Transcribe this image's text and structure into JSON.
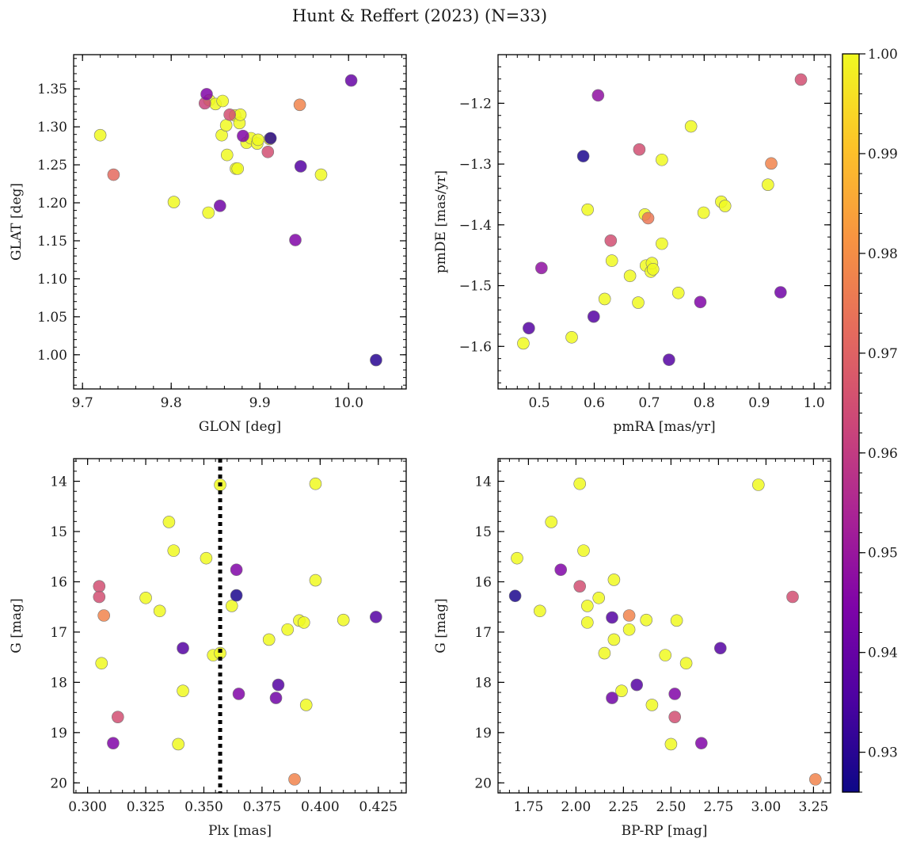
{
  "figure": {
    "title": "Hunt & Reffert (2023) (N=33)",
    "colorbar": {
      "vmin": 0.926,
      "vmax": 1.0,
      "ticks": [
        0.93,
        0.94,
        0.95,
        0.96,
        0.97,
        0.98,
        0.99,
        1.0
      ],
      "tick_labels": [
        "0.93",
        "0.94",
        "0.95",
        "0.96",
        "0.97",
        "0.98",
        "0.99",
        "1.00"
      ],
      "colormap": "plasma"
    }
  },
  "chart_data": [
    {
      "type": "scatter",
      "id": "glon-glat",
      "xlabel": "GLON [deg]",
      "ylabel": "GLAT [deg]",
      "xlim": [
        9.69,
        10.065
      ],
      "ylim": [
        0.955,
        1.395
      ],
      "invert_y": false,
      "xticks": [
        9.7,
        9.8,
        9.9,
        10.0
      ],
      "xtick_labels": [
        "9.7",
        "9.8",
        "9.9",
        "10.0"
      ],
      "yticks": [
        1.0,
        1.05,
        1.1,
        1.15,
        1.2,
        1.25,
        1.3,
        1.35
      ],
      "ytick_labels": [
        "1.00",
        "1.05",
        "1.10",
        "1.15",
        "1.20",
        "1.25",
        "1.30",
        "1.35"
      ],
      "points": [
        {
          "x": 9.72,
          "y": 1.289,
          "c": 1.0
        },
        {
          "x": 9.735,
          "y": 1.237,
          "c": 0.972
        },
        {
          "x": 9.803,
          "y": 1.201,
          "c": 1.0
        },
        {
          "x": 9.838,
          "y": 1.331,
          "c": 0.962
        },
        {
          "x": 9.84,
          "y": 1.343,
          "c": 0.945
        },
        {
          "x": 9.843,
          "y": 1.335,
          "c": 1.0
        },
        {
          "x": 9.842,
          "y": 1.187,
          "c": 1.0
        },
        {
          "x": 9.85,
          "y": 1.33,
          "c": 1.0
        },
        {
          "x": 9.855,
          "y": 1.196,
          "c": 0.942
        },
        {
          "x": 9.857,
          "y": 1.289,
          "c": 1.0
        },
        {
          "x": 9.858,
          "y": 1.334,
          "c": 1.0
        },
        {
          "x": 9.862,
          "y": 1.302,
          "c": 1.0
        },
        {
          "x": 9.863,
          "y": 1.263,
          "c": 1.0
        },
        {
          "x": 9.866,
          "y": 1.316,
          "c": 0.965
        },
        {
          "x": 9.872,
          "y": 1.315,
          "c": 1.0
        },
        {
          "x": 9.873,
          "y": 1.245,
          "c": 1.0
        },
        {
          "x": 9.875,
          "y": 1.245,
          "c": 1.0
        },
        {
          "x": 9.877,
          "y": 1.305,
          "c": 1.0
        },
        {
          "x": 9.878,
          "y": 1.316,
          "c": 1.0
        },
        {
          "x": 9.881,
          "y": 1.288,
          "c": 0.945
        },
        {
          "x": 9.885,
          "y": 1.279,
          "c": 1.0
        },
        {
          "x": 9.89,
          "y": 1.285,
          "c": 1.0
        },
        {
          "x": 9.897,
          "y": 1.278,
          "c": 1.0
        },
        {
          "x": 9.898,
          "y": 1.283,
          "c": 1.0
        },
        {
          "x": 9.909,
          "y": 1.267,
          "c": 0.965
        },
        {
          "x": 9.912,
          "y": 1.285,
          "c": 0.93
        },
        {
          "x": 9.911,
          "y": 1.284,
          "c": 1.0
        },
        {
          "x": 9.94,
          "y": 1.151,
          "c": 0.945
        },
        {
          "x": 9.945,
          "y": 1.329,
          "c": 0.978
        },
        {
          "x": 9.946,
          "y": 1.248,
          "c": 0.937
        },
        {
          "x": 9.969,
          "y": 1.237,
          "c": 1.0
        },
        {
          "x": 10.003,
          "y": 1.361,
          "c": 0.94
        },
        {
          "x": 10.031,
          "y": 0.993,
          "c": 0.93
        }
      ]
    },
    {
      "type": "scatter",
      "id": "pmra-pmde",
      "xlabel": "pmRA [mas/yr]",
      "ylabel": "pmDE [mas/yr]",
      "xlim": [
        0.425,
        1.03
      ],
      "ylim": [
        -1.67,
        -1.12
      ],
      "invert_y": false,
      "xticks": [
        0.5,
        0.6,
        0.7,
        0.8,
        0.9,
        1.0
      ],
      "xtick_labels": [
        "0.5",
        "0.6",
        "0.7",
        "0.8",
        "0.9",
        "1.0"
      ],
      "yticks": [
        -1.6,
        -1.5,
        -1.4,
        -1.3,
        -1.2
      ],
      "ytick_labels": [
        "−1.6",
        "−1.5",
        "−1.4",
        "−1.3",
        "−1.2"
      ],
      "points": [
        {
          "x": 0.471,
          "y": -1.595,
          "c": 1.0
        },
        {
          "x": 0.481,
          "y": -1.57,
          "c": 0.937
        },
        {
          "x": 0.504,
          "y": -1.471,
          "c": 0.948
        },
        {
          "x": 0.559,
          "y": -1.585,
          "c": 1.0
        },
        {
          "x": 0.58,
          "y": -1.287,
          "c": 0.928
        },
        {
          "x": 0.588,
          "y": -1.375,
          "c": 1.0
        },
        {
          "x": 0.599,
          "y": -1.551,
          "c": 0.937
        },
        {
          "x": 0.607,
          "y": -1.187,
          "c": 0.948
        },
        {
          "x": 0.619,
          "y": -1.522,
          "c": 1.0
        },
        {
          "x": 0.63,
          "y": -1.426,
          "c": 0.965
        },
        {
          "x": 0.632,
          "y": -1.459,
          "c": 1.0
        },
        {
          "x": 0.665,
          "y": -1.484,
          "c": 1.0
        },
        {
          "x": 0.68,
          "y": -1.528,
          "c": 1.0
        },
        {
          "x": 0.682,
          "y": -1.276,
          "c": 0.965
        },
        {
          "x": 0.692,
          "y": -1.383,
          "c": 1.0
        },
        {
          "x": 0.694,
          "y": -1.467,
          "c": 1.0
        },
        {
          "x": 0.698,
          "y": -1.389,
          "c": 0.975
        },
        {
          "x": 0.703,
          "y": -1.477,
          "c": 1.0
        },
        {
          "x": 0.705,
          "y": -1.463,
          "c": 1.0
        },
        {
          "x": 0.707,
          "y": -1.473,
          "c": 1.0
        },
        {
          "x": 0.723,
          "y": -1.293,
          "c": 1.0
        },
        {
          "x": 0.723,
          "y": -1.431,
          "c": 1.0
        },
        {
          "x": 0.736,
          "y": -1.622,
          "c": 0.937
        },
        {
          "x": 0.753,
          "y": -1.512,
          "c": 1.0
        },
        {
          "x": 0.776,
          "y": -1.238,
          "c": 1.0
        },
        {
          "x": 0.793,
          "y": -1.527,
          "c": 0.945
        },
        {
          "x": 0.799,
          "y": -1.38,
          "c": 1.0
        },
        {
          "x": 0.831,
          "y": -1.362,
          "c": 1.0
        },
        {
          "x": 0.838,
          "y": -1.369,
          "c": 1.0
        },
        {
          "x": 0.916,
          "y": -1.334,
          "c": 1.0
        },
        {
          "x": 0.922,
          "y": -1.299,
          "c": 0.978
        },
        {
          "x": 0.939,
          "y": -1.511,
          "c": 0.942
        },
        {
          "x": 0.976,
          "y": -1.161,
          "c": 0.965
        }
      ]
    },
    {
      "type": "scatter",
      "id": "plx-g",
      "xlabel": "Plx [mas]",
      "ylabel": "G [mag]",
      "xlim": [
        0.294,
        0.437
      ],
      "ylim": [
        13.55,
        20.2
      ],
      "invert_y": true,
      "xticks": [
        0.3,
        0.325,
        0.35,
        0.375,
        0.4,
        0.425
      ],
      "xtick_labels": [
        "0.300",
        "0.325",
        "0.350",
        "0.375",
        "0.400",
        "0.425"
      ],
      "yticks": [
        14,
        15,
        16,
        17,
        18,
        19,
        20
      ],
      "ytick_labels": [
        "14",
        "15",
        "16",
        "17",
        "18",
        "19",
        "20"
      ],
      "vline": {
        "x": 0.357,
        "style": "dotted",
        "color": "#000000"
      },
      "points": [
        {
          "x": 0.305,
          "y": 16.09,
          "c": 0.965
        },
        {
          "x": 0.305,
          "y": 16.3,
          "c": 0.965
        },
        {
          "x": 0.306,
          "y": 17.62,
          "c": 1.0
        },
        {
          "x": 0.307,
          "y": 16.67,
          "c": 0.978
        },
        {
          "x": 0.311,
          "y": 19.21,
          "c": 0.945
        },
        {
          "x": 0.313,
          "y": 18.69,
          "c": 0.965
        },
        {
          "x": 0.325,
          "y": 16.32,
          "c": 1.0
        },
        {
          "x": 0.331,
          "y": 16.58,
          "c": 1.0
        },
        {
          "x": 0.335,
          "y": 14.81,
          "c": 1.0
        },
        {
          "x": 0.337,
          "y": 15.38,
          "c": 1.0
        },
        {
          "x": 0.339,
          "y": 19.23,
          "c": 1.0
        },
        {
          "x": 0.341,
          "y": 17.32,
          "c": 0.937
        },
        {
          "x": 0.341,
          "y": 18.17,
          "c": 1.0
        },
        {
          "x": 0.351,
          "y": 15.53,
          "c": 1.0
        },
        {
          "x": 0.354,
          "y": 17.46,
          "c": 1.0
        },
        {
          "x": 0.357,
          "y": 14.07,
          "c": 1.0
        },
        {
          "x": 0.357,
          "y": 17.42,
          "c": 1.0
        },
        {
          "x": 0.362,
          "y": 16.48,
          "c": 1.0
        },
        {
          "x": 0.364,
          "y": 15.76,
          "c": 0.945
        },
        {
          "x": 0.364,
          "y": 16.27,
          "c": 0.928
        },
        {
          "x": 0.365,
          "y": 18.23,
          "c": 0.945
        },
        {
          "x": 0.378,
          "y": 17.15,
          "c": 1.0
        },
        {
          "x": 0.381,
          "y": 18.31,
          "c": 0.942
        },
        {
          "x": 0.382,
          "y": 18.05,
          "c": 0.937
        },
        {
          "x": 0.386,
          "y": 16.95,
          "c": 1.0
        },
        {
          "x": 0.389,
          "y": 19.93,
          "c": 0.978
        },
        {
          "x": 0.391,
          "y": 16.77,
          "c": 1.0
        },
        {
          "x": 0.393,
          "y": 16.81,
          "c": 1.0
        },
        {
          "x": 0.394,
          "y": 18.45,
          "c": 1.0
        },
        {
          "x": 0.398,
          "y": 14.05,
          "c": 1.0
        },
        {
          "x": 0.398,
          "y": 15.97,
          "c": 1.0
        },
        {
          "x": 0.41,
          "y": 16.76,
          "c": 1.0
        },
        {
          "x": 0.424,
          "y": 16.7,
          "c": 0.937
        }
      ]
    },
    {
      "type": "scatter",
      "id": "bprp-g",
      "xlabel": "BP-RP [mag]",
      "ylabel": "G [mag]",
      "xlim": [
        1.59,
        3.34
      ],
      "ylim": [
        13.55,
        20.2
      ],
      "invert_y": true,
      "xticks": [
        1.75,
        2.0,
        2.25,
        2.5,
        2.75,
        3.0,
        3.25
      ],
      "xtick_labels": [
        "1.75",
        "2.00",
        "2.25",
        "2.50",
        "2.75",
        "3.00",
        "3.25"
      ],
      "yticks": [
        14,
        15,
        16,
        17,
        18,
        19,
        20
      ],
      "ytick_labels": [
        "14",
        "15",
        "16",
        "17",
        "18",
        "19",
        "20"
      ],
      "points": [
        {
          "x": 1.68,
          "y": 16.28,
          "c": 0.928
        },
        {
          "x": 1.69,
          "y": 15.53,
          "c": 1.0
        },
        {
          "x": 1.81,
          "y": 16.58,
          "c": 1.0
        },
        {
          "x": 1.87,
          "y": 14.81,
          "c": 1.0
        },
        {
          "x": 1.92,
          "y": 15.76,
          "c": 0.945
        },
        {
          "x": 2.02,
          "y": 14.05,
          "c": 1.0
        },
        {
          "x": 2.02,
          "y": 16.09,
          "c": 0.965
        },
        {
          "x": 2.04,
          "y": 15.38,
          "c": 1.0
        },
        {
          "x": 2.06,
          "y": 16.48,
          "c": 1.0
        },
        {
          "x": 2.06,
          "y": 16.81,
          "c": 1.0
        },
        {
          "x": 2.12,
          "y": 16.32,
          "c": 1.0
        },
        {
          "x": 2.15,
          "y": 17.42,
          "c": 1.0
        },
        {
          "x": 2.19,
          "y": 16.71,
          "c": 0.937
        },
        {
          "x": 2.19,
          "y": 18.31,
          "c": 0.942
        },
        {
          "x": 2.2,
          "y": 15.96,
          "c": 1.0
        },
        {
          "x": 2.2,
          "y": 17.15,
          "c": 1.0
        },
        {
          "x": 2.24,
          "y": 18.17,
          "c": 1.0
        },
        {
          "x": 2.28,
          "y": 16.67,
          "c": 0.978
        },
        {
          "x": 2.28,
          "y": 16.95,
          "c": 1.0
        },
        {
          "x": 2.32,
          "y": 18.05,
          "c": 0.937
        },
        {
          "x": 2.37,
          "y": 16.76,
          "c": 1.0
        },
        {
          "x": 2.4,
          "y": 18.45,
          "c": 1.0
        },
        {
          "x": 2.47,
          "y": 17.46,
          "c": 1.0
        },
        {
          "x": 2.5,
          "y": 19.23,
          "c": 1.0
        },
        {
          "x": 2.52,
          "y": 18.23,
          "c": 0.945
        },
        {
          "x": 2.52,
          "y": 18.69,
          "c": 0.965
        },
        {
          "x": 2.53,
          "y": 16.77,
          "c": 1.0
        },
        {
          "x": 2.58,
          "y": 17.62,
          "c": 1.0
        },
        {
          "x": 2.66,
          "y": 19.21,
          "c": 0.945
        },
        {
          "x": 2.76,
          "y": 17.32,
          "c": 0.937
        },
        {
          "x": 2.96,
          "y": 14.07,
          "c": 1.0
        },
        {
          "x": 3.14,
          "y": 16.3,
          "c": 0.965
        },
        {
          "x": 3.26,
          "y": 19.93,
          "c": 0.978
        }
      ]
    }
  ]
}
